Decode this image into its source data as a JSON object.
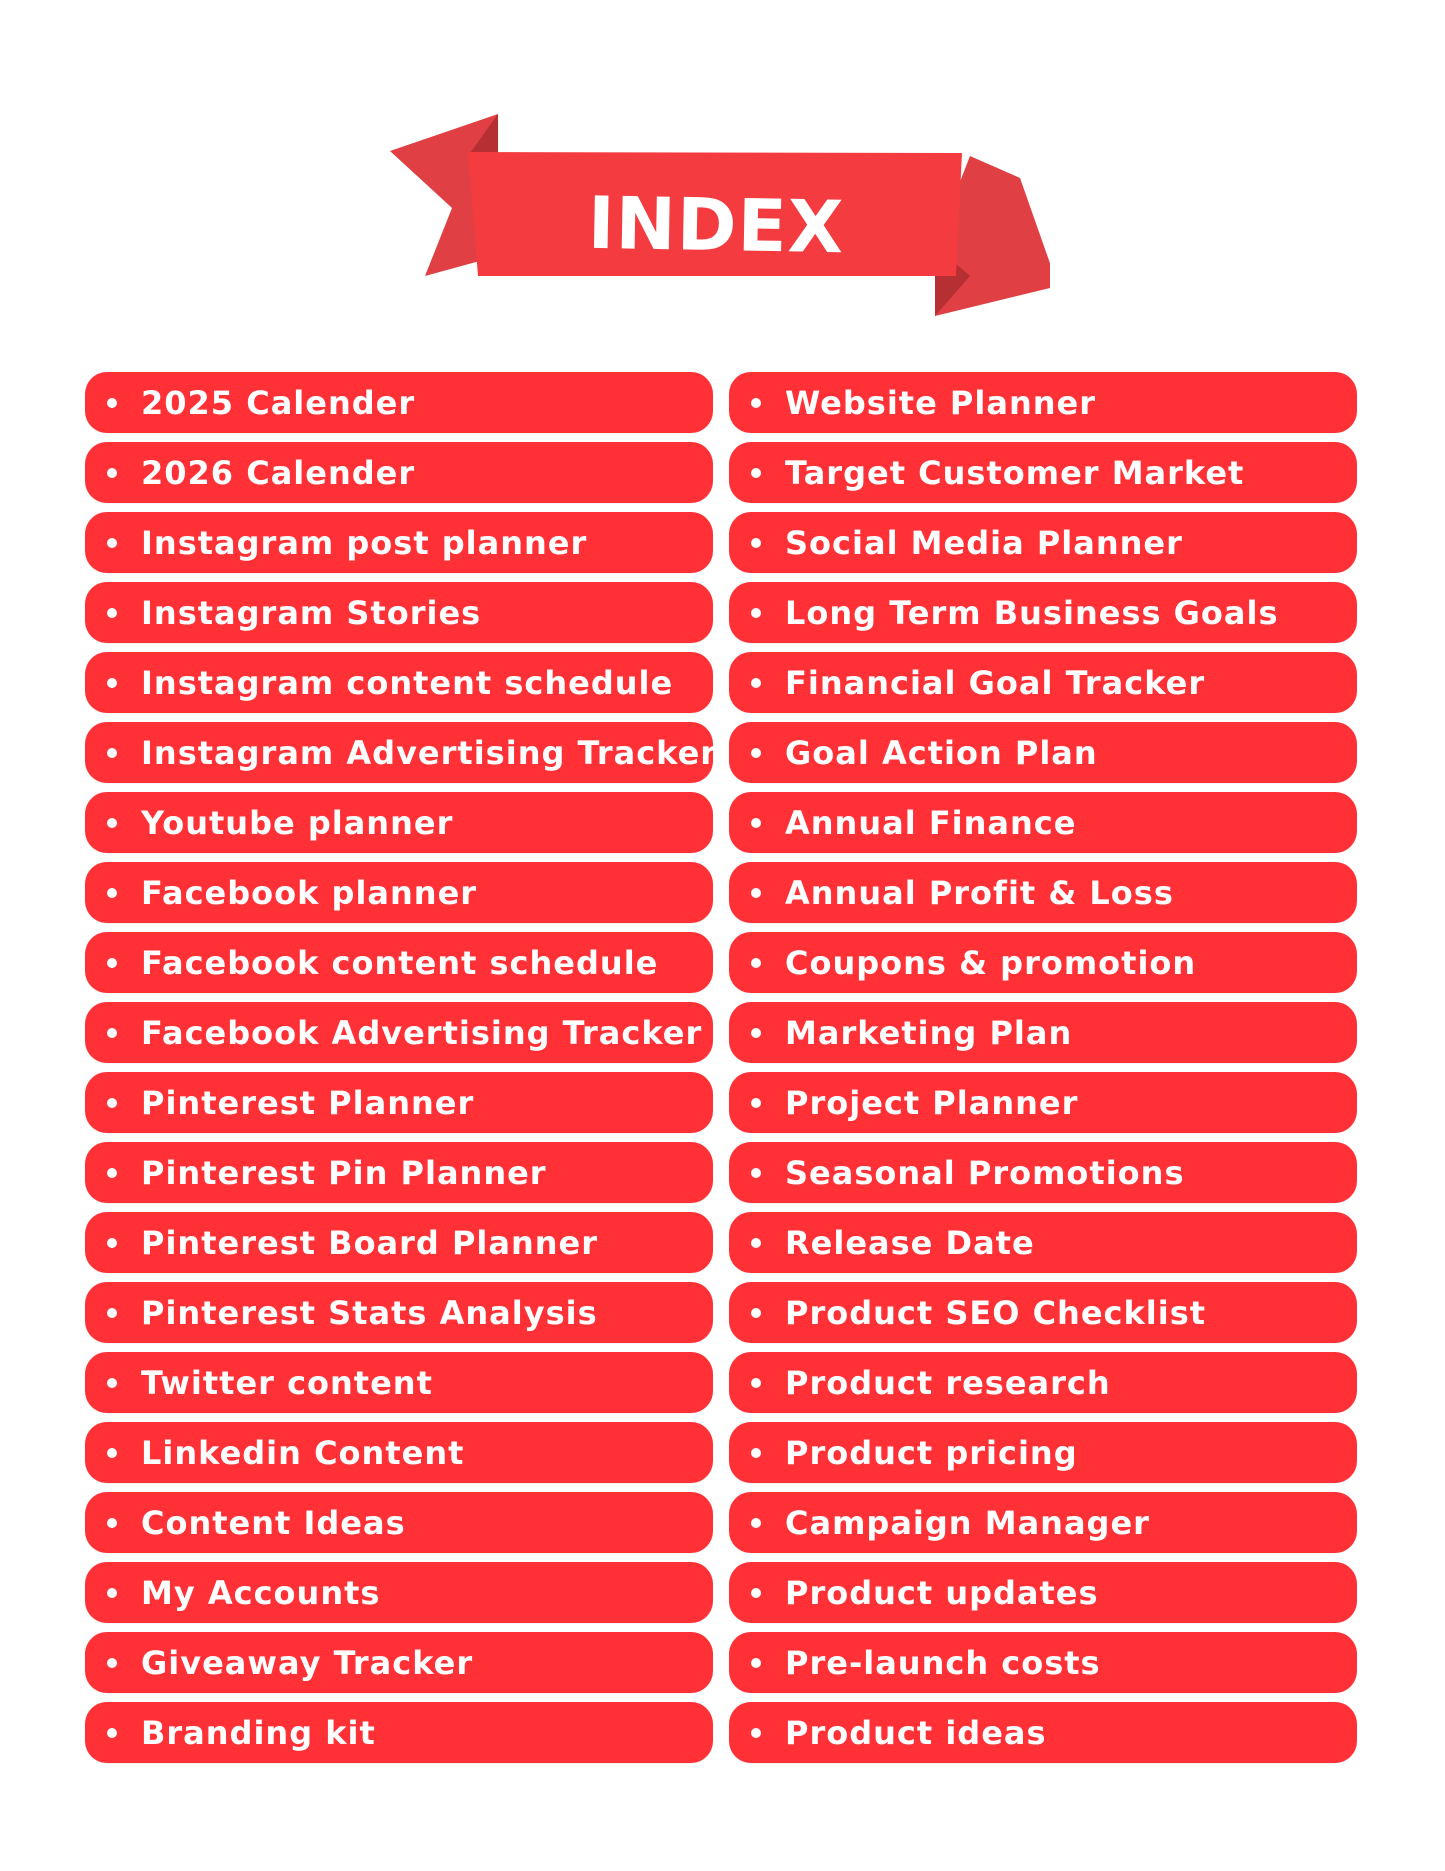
{
  "title": "INDEX",
  "colors": {
    "accent": "#ff3036",
    "ribbon": "#f43c40",
    "ribbon_fold": "#d43a3e",
    "text": "#ffffff",
    "background": "#ffffff"
  },
  "left_items": [
    "2025 Calender",
    "2026 Calender",
    "Instagram post planner",
    "Instagram Stories",
    "Instagram content schedule",
    "Instagram Advertising Tracker",
    "Youtube planner",
    "Facebook planner",
    "Facebook content schedule",
    "Facebook Advertising Tracker",
    "Pinterest Planner",
    "Pinterest Pin Planner",
    "Pinterest Board Planner",
    "Pinterest Stats Analysis",
    "Twitter content",
    "Linkedin Content",
    "Content Ideas",
    "My Accounts",
    "Giveaway Tracker",
    "Branding kit"
  ],
  "right_items": [
    "Website Planner",
    "Target Customer Market",
    "Social Media Planner",
    "Long Term Business Goals",
    "Financial Goal Tracker",
    "Goal Action Plan",
    "Annual Finance",
    "Annual Profit & Loss",
    "Coupons & promotion",
    "Marketing Plan",
    "Project Planner",
    "Seasonal Promotions",
    "Release Date",
    "Product SEO Checklist",
    "Product research",
    "Product pricing",
    "Campaign Manager",
    "Product updates",
    "Pre-launch costs",
    "Product ideas"
  ]
}
